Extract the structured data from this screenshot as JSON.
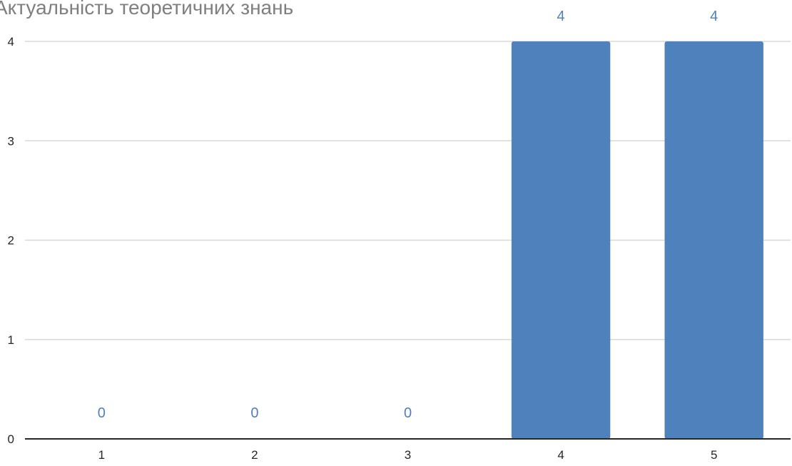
{
  "chart_data": {
    "type": "bar",
    "title": "Актуальність теоретичних знань",
    "categories": [
      "1",
      "2",
      "3",
      "4",
      "5"
    ],
    "values": [
      0,
      0,
      0,
      4,
      4
    ],
    "data_labels": [
      "0",
      "0",
      "0",
      "4",
      "4"
    ],
    "ylim": [
      0,
      4
    ],
    "y_ticks": [
      "0",
      "1",
      "2",
      "3",
      "4"
    ],
    "xlabel": "",
    "ylabel": "",
    "grid": true,
    "legend": "none",
    "colors": {
      "bar": "#4f81bd",
      "data_label": "#4f81bd",
      "gridline": "#d9d9d9",
      "axis": "#262626",
      "title": "#7f7f7f",
      "tick_text": "#262626"
    }
  }
}
